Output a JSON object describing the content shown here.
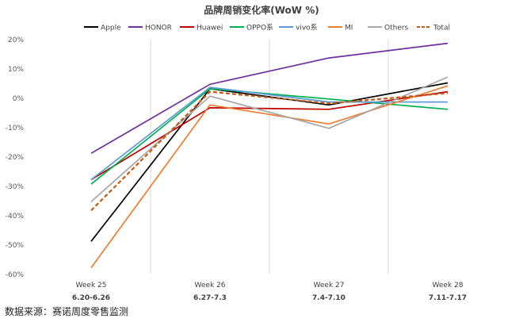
{
  "chart_data": {
    "type": "line",
    "title": "品牌周销变化率(WoW %)",
    "categories": [
      "Week 25",
      "Week 26",
      "Week 27",
      "Week 28"
    ],
    "category_sublabels": [
      "6.20-6.26",
      "6.27-7.3",
      "7.4-7.10",
      "7.11-7.17"
    ],
    "ylim": [
      -60,
      20
    ],
    "yticks": [
      -60,
      -50,
      -40,
      -30,
      -20,
      -10,
      0,
      10,
      20
    ],
    "ytick_labels": [
      "-60%",
      "-50%",
      "-40%",
      "-30%",
      "-20%",
      "-10%",
      "0%",
      "10%",
      "20%"
    ],
    "grid": "vertical",
    "legend_position": "top",
    "series": [
      {
        "name": "Apple",
        "color": "#000000",
        "dash": false,
        "values": [
          -49,
          3,
          -2.5,
          5
        ]
      },
      {
        "name": "HONOR",
        "color": "#7030a0",
        "dash": false,
        "values": [
          -19,
          4.5,
          13.5,
          18.5
        ]
      },
      {
        "name": "Huawei",
        "color": "#c00000",
        "dash": false,
        "values": [
          -28,
          -3.5,
          -4,
          2
        ]
      },
      {
        "name": "OPPO系",
        "color": "#00b050",
        "dash": false,
        "values": [
          -29.5,
          3,
          -0.5,
          -4
        ]
      },
      {
        "name": "vivo系",
        "color": "#5b9bd5",
        "dash": false,
        "values": [
          -28,
          3.5,
          -1.5,
          -1.5
        ]
      },
      {
        "name": "MI",
        "color": "#ed7d31",
        "dash": false,
        "values": [
          -58,
          -2.5,
          -9,
          4
        ]
      },
      {
        "name": "Others",
        "color": "#a6a6a6",
        "dash": false,
        "values": [
          -35.5,
          0.5,
          -10.5,
          7
        ]
      },
      {
        "name": "Total",
        "color": "#c55a11",
        "dash": true,
        "values": [
          -38.5,
          2,
          -2,
          1.5
        ]
      }
    ]
  },
  "source_note": "数据来源：赛诺周度零售监测"
}
